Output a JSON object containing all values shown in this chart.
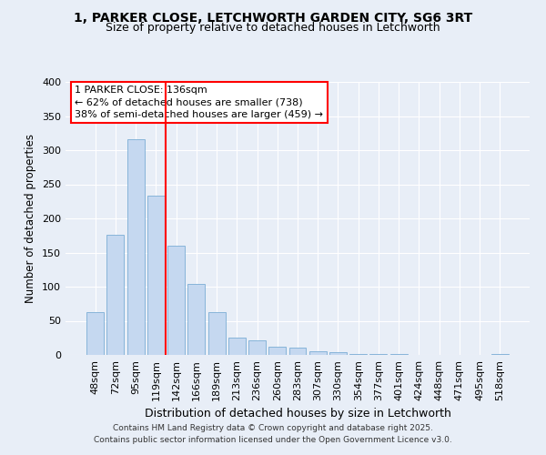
{
  "title_line1": "1, PARKER CLOSE, LETCHWORTH GARDEN CITY, SG6 3RT",
  "title_line2": "Size of property relative to detached houses in Letchworth",
  "xlabel": "Distribution of detached houses by size in Letchworth",
  "ylabel": "Number of detached properties",
  "bar_labels": [
    "48sqm",
    "72sqm",
    "95sqm",
    "119sqm",
    "142sqm",
    "166sqm",
    "189sqm",
    "213sqm",
    "236sqm",
    "260sqm",
    "283sqm",
    "307sqm",
    "330sqm",
    "354sqm",
    "377sqm",
    "401sqm",
    "424sqm",
    "448sqm",
    "471sqm",
    "495sqm",
    "518sqm"
  ],
  "bar_values": [
    63,
    176,
    316,
    234,
    160,
    104,
    63,
    25,
    22,
    12,
    11,
    5,
    4,
    2,
    1,
    1,
    0,
    0,
    0,
    0,
    1
  ],
  "bar_color": "#c5d8f0",
  "bar_edge_color": "#7aadd4",
  "vline_x_index": 4,
  "vline_color": "red",
  "annotation_text": "1 PARKER CLOSE: 136sqm\n← 62% of detached houses are smaller (738)\n38% of semi-detached houses are larger (459) →",
  "annotation_box_color": "white",
  "annotation_box_edge_color": "red",
  "ylim": [
    0,
    400
  ],
  "yticks": [
    0,
    50,
    100,
    150,
    200,
    250,
    300,
    350,
    400
  ],
  "background_color": "#e8eef7",
  "grid_color": "white",
  "footer_line1": "Contains HM Land Registry data © Crown copyright and database right 2025.",
  "footer_line2": "Contains public sector information licensed under the Open Government Licence v3.0."
}
